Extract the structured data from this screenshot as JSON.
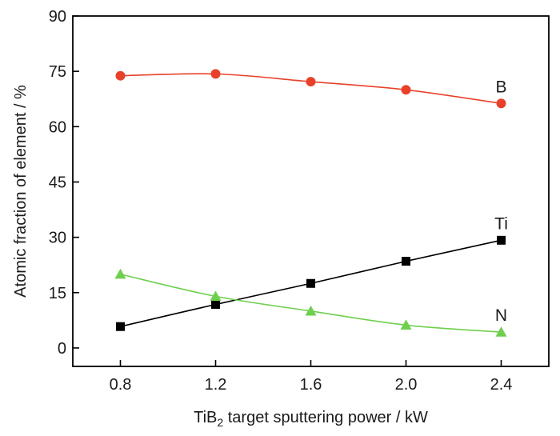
{
  "chart_data": {
    "type": "line",
    "x": [
      0.8,
      1.2,
      1.6,
      2.0,
      2.4
    ],
    "xlim": [
      0.6,
      2.6
    ],
    "ylim": [
      -5,
      90
    ],
    "xticks": [
      "0.8",
      "1.2",
      "1.6",
      "2.0",
      "2.4"
    ],
    "yticks": [
      "0",
      "15",
      "30",
      "45",
      "60",
      "75",
      "90"
    ],
    "xlabel_main": "TiB",
    "xlabel_sub": "2",
    "xlabel_rest": " target sputtering power / kW",
    "ylabel": "Atomic fraction of element / %",
    "grid": false,
    "series": [
      {
        "name": "B",
        "marker": "circle",
        "color": "#e8412a",
        "values": [
          73.8,
          74.3,
          72.2,
          70.0,
          66.3
        ]
      },
      {
        "name": "Ti",
        "marker": "square",
        "color": "#000000",
        "values": [
          5.8,
          11.8,
          17.5,
          23.5,
          29.2
        ]
      },
      {
        "name": "N",
        "marker": "triangle",
        "color": "#6fcf4e",
        "values": [
          20.0,
          14.0,
          10.0,
          6.2,
          4.3
        ]
      }
    ]
  }
}
